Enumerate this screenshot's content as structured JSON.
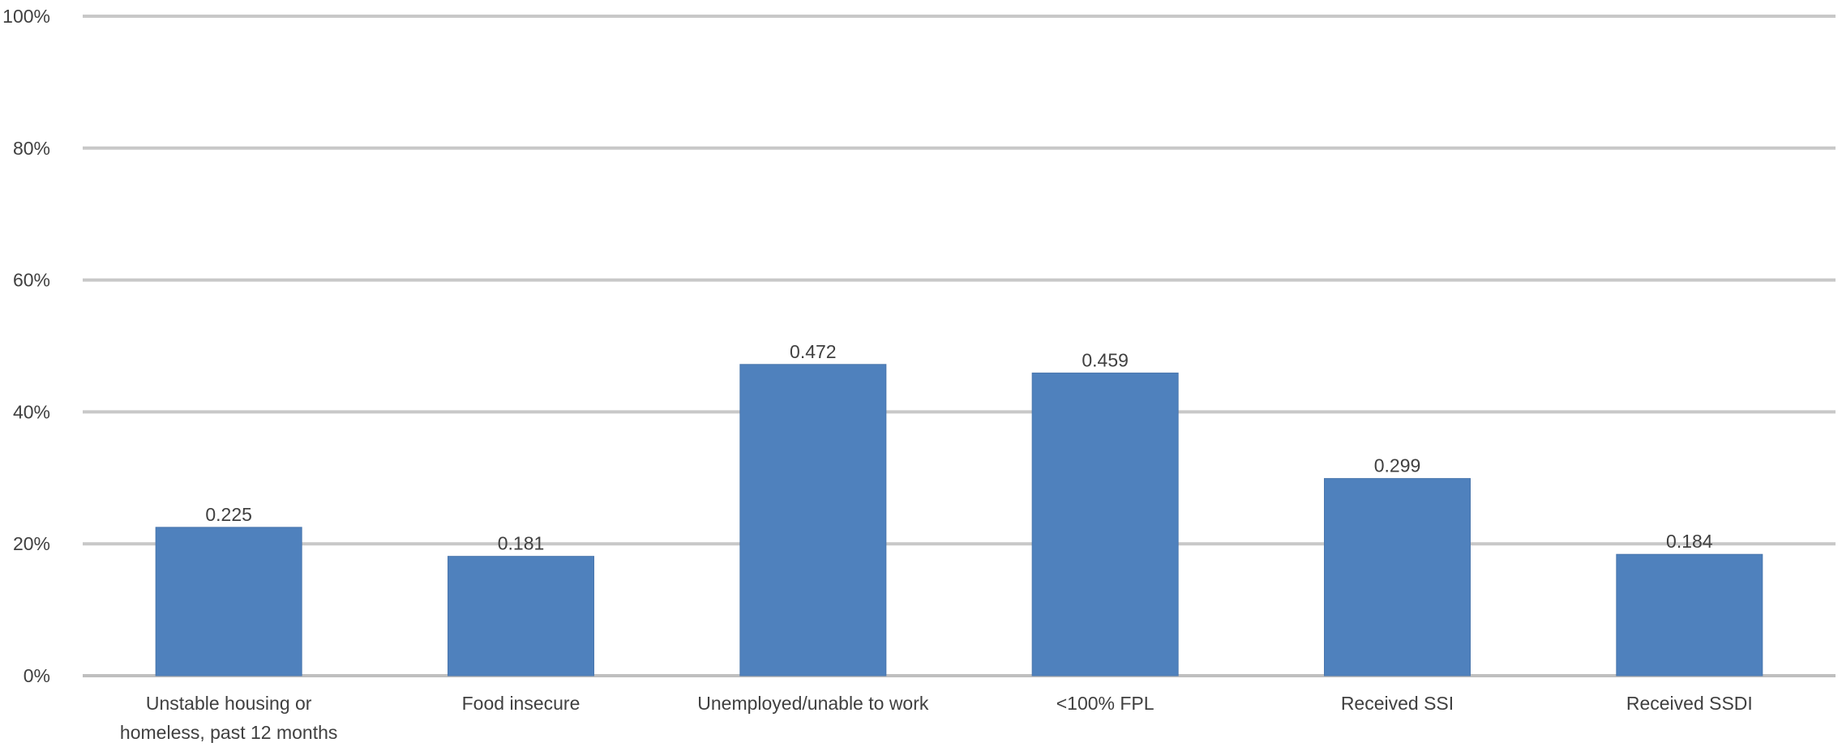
{
  "chart_data": {
    "type": "bar",
    "title": "",
    "xlabel": "",
    "ylabel": "",
    "ylim": [
      0,
      1
    ],
    "y_ticks": [
      {
        "value": 0,
        "label": "0%"
      },
      {
        "value": 0.2,
        "label": "20%"
      },
      {
        "value": 0.4,
        "label": "40%"
      },
      {
        "value": 0.6,
        "label": "60%"
      },
      {
        "value": 0.8,
        "label": "80%"
      },
      {
        "value": 1.0,
        "label": "100%"
      }
    ],
    "grid": true,
    "legend": "none",
    "categories": [
      [
        "Unstable housing or",
        "homeless, past 12 months"
      ],
      [
        "Food insecure"
      ],
      [
        "Unemployed/unable to work"
      ],
      [
        "<100% FPL"
      ],
      [
        "Received SSI"
      ],
      [
        "Received SSDI"
      ]
    ],
    "values": [
      0.225,
      0.181,
      0.472,
      0.459,
      0.299,
      0.184
    ],
    "data_labels": [
      "0.225",
      "0.181",
      "0.472",
      "0.459",
      "0.299",
      "0.184"
    ],
    "bar_color": "#4f81bd"
  }
}
